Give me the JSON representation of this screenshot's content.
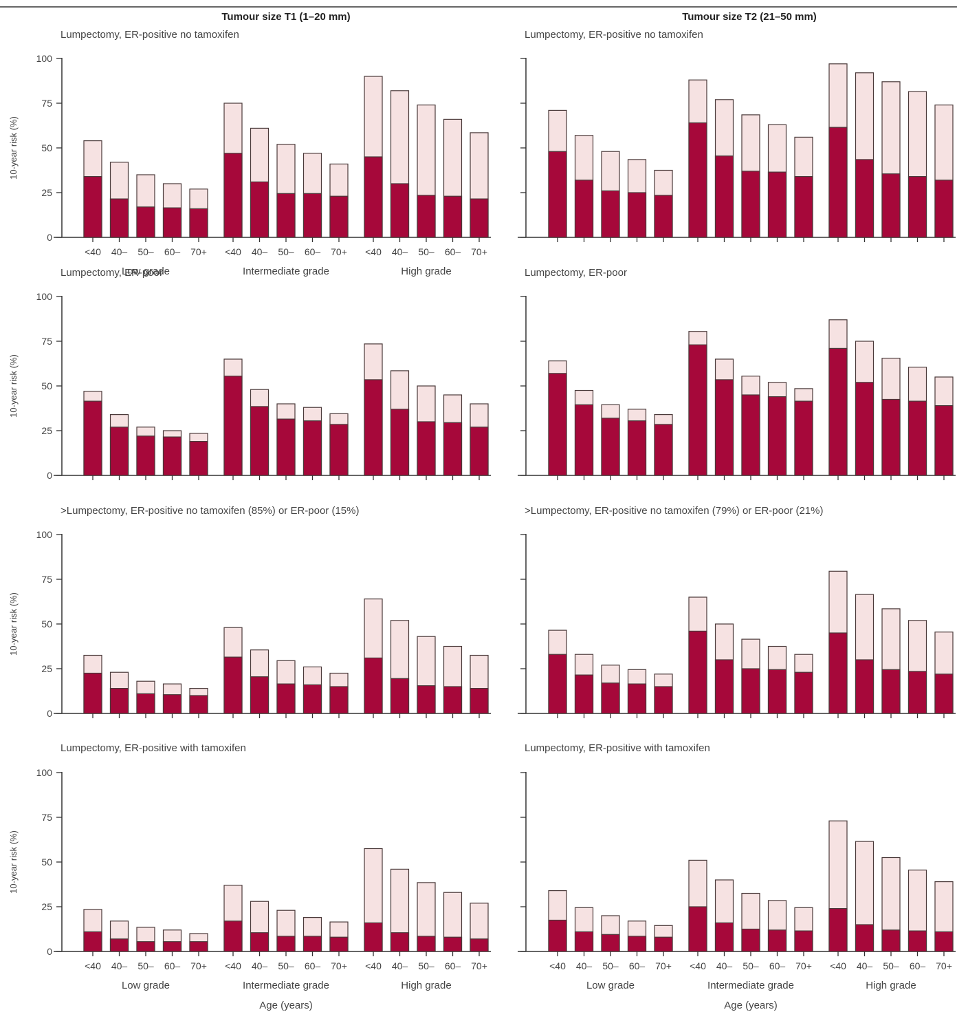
{
  "colors": {
    "dark": "#a6083a",
    "light": "#f6e2e2",
    "stroke": "#4a3a3a",
    "axis": "#333333"
  },
  "chart_data": [
    {
      "type": "bar",
      "stacked": true,
      "column_title": "Tumour size T1 (1–20 mm)",
      "title": "Lumpectomy, ER-positive no tamoxifen",
      "ylabel": "10-year risk (%)",
      "ylim": [
        0,
        100
      ],
      "yticks": [
        0,
        25,
        50,
        75,
        100
      ],
      "groups": [
        "Low grade",
        "Intermediate grade",
        "High grade"
      ],
      "categories": [
        "<40",
        "40–",
        "50–",
        "60–",
        "70+"
      ],
      "xlabel": "",
      "dark_values": [
        34,
        21.5,
        17,
        16.5,
        16,
        47,
        31,
        24.5,
        24.5,
        23,
        45,
        30,
        23.5,
        23,
        21.5
      ],
      "total_values": [
        54,
        42,
        35,
        30,
        27,
        75,
        61,
        52,
        47,
        41,
        90,
        82,
        74,
        66,
        58.5
      ]
    },
    {
      "type": "bar",
      "stacked": true,
      "column_title": "Tumour size T2 (21–50 mm)",
      "title": "Lumpectomy, ER-positive no tamoxifen",
      "ylabel": "",
      "ylim": [
        0,
        100
      ],
      "yticks": [],
      "groups": [],
      "categories": [],
      "xlabel": "",
      "dark_values": [
        48,
        32,
        26,
        25,
        23.5,
        64,
        45.5,
        37,
        36.5,
        34,
        61.5,
        43.5,
        35.5,
        34,
        32
      ],
      "total_values": [
        71,
        57,
        48,
        43.5,
        37.5,
        88,
        77,
        68.5,
        63,
        56,
        97,
        92,
        87,
        81.5,
        74
      ]
    },
    {
      "type": "bar",
      "stacked": true,
      "column_title": "",
      "title": "Lumpectomy, ER-poor",
      "ylabel": "10-year risk (%)",
      "ylim": [
        0,
        100
      ],
      "yticks": [
        0,
        25,
        50,
        75,
        100
      ],
      "groups": [],
      "categories": [],
      "xlabel": "",
      "dark_values": [
        41.5,
        27,
        22,
        21.5,
        19,
        55.5,
        38.5,
        31.5,
        30.5,
        28.5,
        53.5,
        37,
        30,
        29.5,
        27
      ],
      "total_values": [
        47,
        34,
        27,
        25,
        23.5,
        65,
        48,
        40,
        38,
        34.5,
        73.5,
        58.5,
        50,
        45,
        40
      ]
    },
    {
      "type": "bar",
      "stacked": true,
      "column_title": "",
      "title": "Lumpectomy, ER-poor",
      "ylabel": "",
      "ylim": [
        0,
        100
      ],
      "yticks": [],
      "groups": [],
      "categories": [],
      "xlabel": "",
      "dark_values": [
        57,
        39.5,
        32,
        30.5,
        28.5,
        73,
        53.5,
        45,
        44,
        41.5,
        71,
        52,
        42.5,
        41.5,
        39
      ],
      "total_values": [
        64,
        47.5,
        39.5,
        37,
        34,
        80.5,
        65,
        55.5,
        52,
        48.5,
        87,
        75,
        65.5,
        60.5,
        55
      ]
    },
    {
      "type": "bar",
      "stacked": true,
      "column_title": "",
      "title": ">Lumpectomy, ER-positive no tamoxifen (85%) or ER-poor (15%)",
      "ylabel": "10-year risk (%)",
      "ylim": [
        0,
        100
      ],
      "yticks": [
        0,
        25,
        50,
        75,
        100
      ],
      "groups": [],
      "categories": [],
      "xlabel": "",
      "dark_values": [
        22.5,
        14,
        11,
        10.5,
        10,
        31.5,
        20.5,
        16.5,
        16,
        15,
        31,
        19.5,
        15.5,
        15,
        14
      ],
      "total_values": [
        32.5,
        23,
        18,
        16.5,
        14,
        48,
        35.5,
        29.5,
        26,
        22.5,
        64,
        52,
        43,
        37.5,
        32.5
      ]
    },
    {
      "type": "bar",
      "stacked": true,
      "column_title": "",
      "title": ">Lumpectomy, ER-positive no tamoxifen (79%) or ER-poor (21%)",
      "ylabel": "",
      "ylim": [
        0,
        100
      ],
      "yticks": [],
      "groups": [],
      "categories": [],
      "xlabel": "",
      "dark_values": [
        33,
        21.5,
        17,
        16.5,
        15,
        46,
        30,
        25,
        24.5,
        23,
        45,
        30,
        24.5,
        23.5,
        22
      ],
      "total_values": [
        46.5,
        33,
        27,
        24.5,
        22,
        65,
        50,
        41.5,
        37.5,
        33,
        79.5,
        66.5,
        58.5,
        52,
        45.5
      ]
    },
    {
      "type": "bar",
      "stacked": true,
      "column_title": "",
      "title": "Lumpectomy, ER-positive with tamoxifen",
      "ylabel": "10-year risk (%)",
      "ylim": [
        0,
        100
      ],
      "yticks": [
        0,
        25,
        50,
        75,
        100
      ],
      "groups": [
        "Low grade",
        "Intermediate grade",
        "High grade"
      ],
      "categories": [
        "<40",
        "40–",
        "50–",
        "60–",
        "70+"
      ],
      "xlabel": "Age (years)",
      "dark_values": [
        11,
        7,
        5.5,
        5.5,
        5.5,
        17,
        10.5,
        8.5,
        8.5,
        8,
        16,
        10.5,
        8.5,
        8,
        7
      ],
      "total_values": [
        23.5,
        17,
        13.5,
        12,
        10,
        37,
        28,
        23,
        19,
        16.5,
        57.5,
        46,
        38.5,
        33,
        27
      ]
    },
    {
      "type": "bar",
      "stacked": true,
      "column_title": "",
      "title": "Lumpectomy, ER-positive with tamoxifen",
      "ylabel": "",
      "ylim": [
        0,
        100
      ],
      "yticks": [],
      "groups": [
        "Low grade",
        "Intermediate grade",
        "High grade"
      ],
      "categories": [
        "<40",
        "40–",
        "50–",
        "60–",
        "70+"
      ],
      "xlabel": "Age (years)",
      "dark_values": [
        17.5,
        11,
        9.5,
        8.5,
        8,
        25,
        16,
        12.5,
        12,
        11.5,
        24,
        15,
        12,
        11.5,
        11
      ],
      "total_values": [
        34,
        24.5,
        20,
        17,
        14.5,
        51,
        40,
        32.5,
        28.5,
        24.5,
        73,
        61.5,
        52.5,
        45.5,
        39
      ]
    }
  ]
}
